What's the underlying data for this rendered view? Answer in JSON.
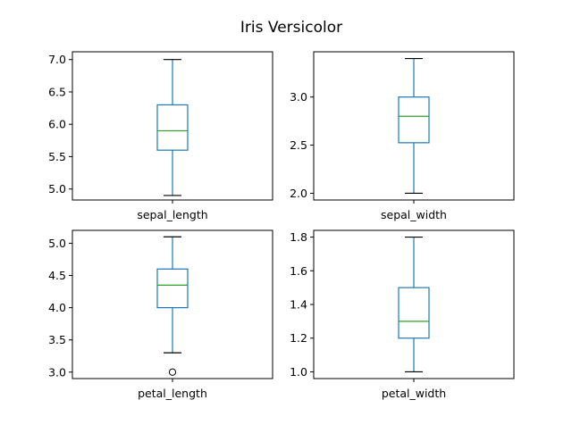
{
  "title": "Iris Versicolor",
  "colors": {
    "box": "#1f77b4",
    "median": "#2ca02c",
    "flier": "#000000",
    "frame": "#000000"
  },
  "chart_data": [
    {
      "type": "box",
      "category": "sepal_length",
      "ylim": [
        4.83,
        7.12
      ],
      "yticks": [
        5.0,
        5.5,
        6.0,
        6.5,
        7.0
      ],
      "ytick_labels": [
        "5.0",
        "5.5",
        "6.0",
        "6.5",
        "7.0"
      ],
      "box": {
        "whisker_low": 4.9,
        "q1": 5.6,
        "median": 5.9,
        "q3": 6.3,
        "whisker_high": 7.0
      },
      "outliers": []
    },
    {
      "type": "box",
      "category": "sepal_width",
      "ylim": [
        1.93,
        3.47
      ],
      "yticks": [
        2.0,
        2.5,
        3.0
      ],
      "ytick_labels": [
        "2.0",
        "2.5",
        "3.0"
      ],
      "box": {
        "whisker_low": 2.0,
        "q1": 2.525,
        "median": 2.8,
        "q3": 3.0,
        "whisker_high": 3.4
      },
      "outliers": []
    },
    {
      "type": "box",
      "category": "petal_length",
      "ylim": [
        2.9,
        5.2
      ],
      "yticks": [
        3.0,
        3.5,
        4.0,
        4.5,
        5.0
      ],
      "ytick_labels": [
        "3.0",
        "3.5",
        "4.0",
        "4.5",
        "5.0"
      ],
      "box": {
        "whisker_low": 3.3,
        "q1": 4.0,
        "median": 4.35,
        "q3": 4.6,
        "whisker_high": 5.1
      },
      "outliers": [
        3.0
      ]
    },
    {
      "type": "box",
      "category": "petal_width",
      "ylim": [
        0.96,
        1.84
      ],
      "yticks": [
        1.0,
        1.2,
        1.4,
        1.6,
        1.8
      ],
      "ytick_labels": [
        "1.0",
        "1.2",
        "1.4",
        "1.6",
        "1.8"
      ],
      "box": {
        "whisker_low": 1.0,
        "q1": 1.2,
        "median": 1.3,
        "q3": 1.5,
        "whisker_high": 1.8
      },
      "outliers": []
    }
  ]
}
